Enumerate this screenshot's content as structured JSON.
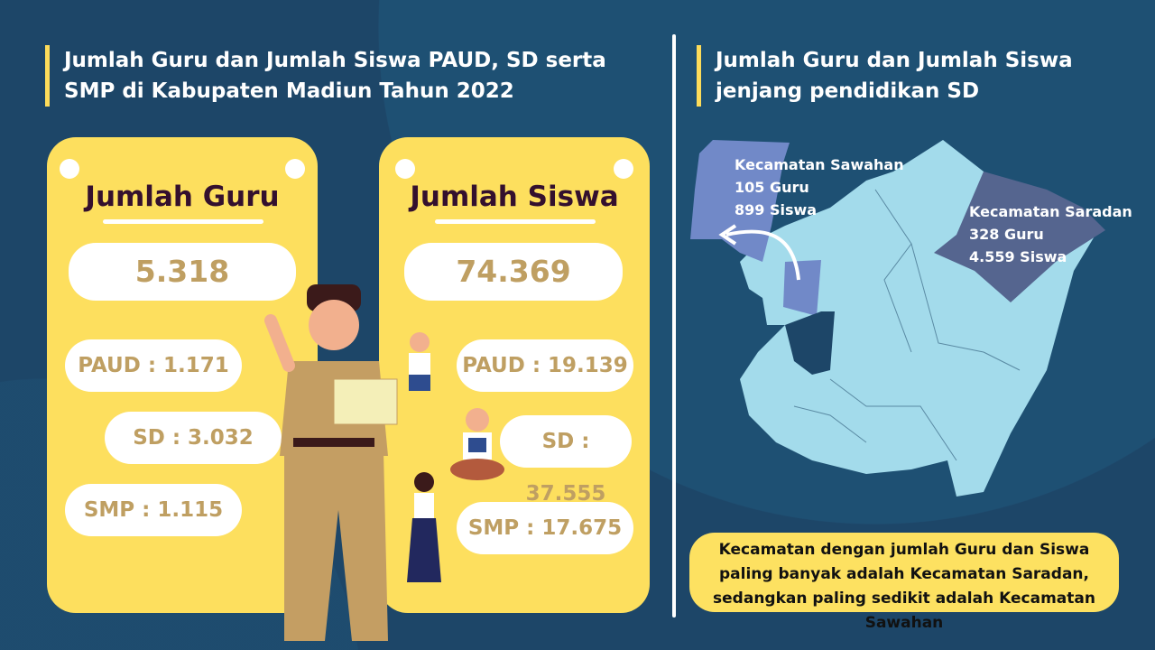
{
  "left_title": "Jumlah Guru dan Jumlah Siswa PAUD, SD serta SMP di Kabupaten Madiun Tahun 2022",
  "right_title": "Jumlah Guru dan Jumlah Siswa jenjang pendidikan SD",
  "guru": {
    "heading": "Jumlah Guru",
    "total": "5.318",
    "paud": "PAUD : 1.171",
    "sd": "SD : 3.032",
    "smp": "SMP : 1.115"
  },
  "siswa": {
    "heading": "Jumlah Siswa",
    "total": "74.369",
    "paud": "PAUD : 19.139",
    "sd": "SD : 37.555",
    "smp": "SMP : 17.675"
  },
  "map": {
    "sawahan": {
      "name": "Kecamatan Sawahan",
      "guru": "105 Guru",
      "siswa": "899 Siswa",
      "color": "#7189c8"
    },
    "saradan": {
      "name": "Kecamatan Saradan",
      "guru": "328 Guru",
      "siswa": "4.559 Siswa",
      "color": "#55658f"
    },
    "base_color": "#a3dbeb"
  },
  "note": "Kecamatan dengan jumlah Guru dan Siswa paling banyak adalah Kecamatan Saradan, sedangkan paling sedikit adalah Kecamatan Sawahan",
  "colors": {
    "background": "#1d4668",
    "accent_yellow": "#fddf5e",
    "number_text": "#bf9f62",
    "heading_text": "#34102e"
  }
}
